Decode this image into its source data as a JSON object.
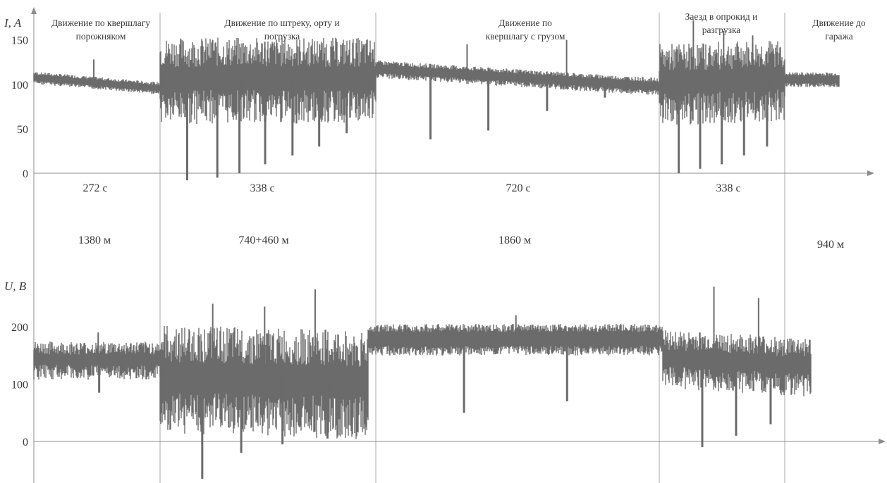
{
  "colors": {
    "trace": "#6b6b6b",
    "axis": "#8c8c8c",
    "divider": "#a8a8a8",
    "text": "#3a3a3a"
  },
  "chart_data": [
    {
      "type": "line",
      "title": "",
      "ylabel": "I, A",
      "xlabel": "",
      "ylim": [
        0,
        160
      ],
      "yticks": [
        "0",
        "50",
        "100",
        "150"
      ],
      "yticks_values": [
        0,
        50,
        100,
        150
      ],
      "grid": false,
      "phases": [
        {
          "title_lines": [
            "Движение по кверш­лагу",
            "порожняком"
          ],
          "duration": "272 с",
          "distance": "1380 м"
        },
        {
          "title_lines": [
            "Движение по штреку, орту и",
            "погрузка"
          ],
          "duration": "338 с",
          "distance": "740+460 м"
        },
        {
          "title_lines": [
            "Движение по",
            "квершлагу с грузом"
          ],
          "duration": "720 с",
          "distance": "1860 м"
        },
        {
          "title_lines": [
            "Заезд в опрокид и",
            "разгрузка"
          ],
          "duration": "338 с",
          "distance": ""
        },
        {
          "title_lines": [
            "Движение до",
            "гаража"
          ],
          "duration": "",
          "distance": "940 м"
        }
      ],
      "series": [
        {
          "segments": [
            {
              "phase": 0,
              "band": [
                98,
                112
              ],
              "trend": [
                108,
                96
              ],
              "spikes_down": [],
              "spikes_up": [
                128
              ]
            },
            {
              "phase": 1,
              "band": [
                55,
                150
              ],
              "trend": [
                110,
                110
              ],
              "spikes_down": [
                -8,
                -5,
                0,
                10,
                20,
                30,
                45
              ],
              "spikes_up": [
                150,
                148,
                145
              ]
            },
            {
              "phase": 2,
              "band": [
                98,
                118
              ],
              "trend": [
                118,
                98
              ],
              "spikes_down": [
                38,
                48,
                70,
                85
              ],
              "spikes_up": [
                145,
                150
              ]
            },
            {
              "phase": 3,
              "band": [
                60,
                150
              ],
              "trend": [
                105,
                110
              ],
              "spikes_down": [
                0,
                5,
                10,
                20,
                30
              ],
              "spikes_up": [
                172,
                160,
                155
              ]
            },
            {
              "phase": 4,
              "band": [
                98,
                115
              ],
              "trend": [
                106,
                106
              ],
              "spikes_down": [],
              "spikes_up": []
            }
          ]
        }
      ]
    },
    {
      "type": "line",
      "title": "",
      "ylabel": "U, B",
      "xlabel": "",
      "ylim": [
        -70,
        260
      ],
      "yticks": [
        "0",
        "100",
        "200"
      ],
      "yticks_values": [
        0,
        100,
        200
      ],
      "grid": false,
      "series": [
        {
          "segments": [
            {
              "phase": 0,
              "band": [
                115,
                180
              ],
              "trend": [
                145,
                145
              ],
              "spikes_down": [
                85
              ],
              "spikes_up": [
                190
              ]
            },
            {
              "phase": 1,
              "band": [
                15,
                200
              ],
              "trend": [
                120,
                110
              ],
              "spikes_down": [
                -65,
                -20,
                -5,
                5
              ],
              "spikes_up": [
                240,
                235,
                265
              ]
            },
            {
              "phase": 2,
              "band": [
                150,
                205
              ],
              "trend": [
                180,
                180
              ],
              "spikes_down": [
                50,
                70
              ],
              "spikes_up": [
                220
              ]
            },
            {
              "phase": 3,
              "band": [
                100,
                200
              ],
              "trend": [
                150,
                135
              ],
              "spikes_down": [
                -10,
                10,
                30
              ],
              "spikes_up": [
                270,
                250
              ]
            },
            {
              "phase": 4,
              "band": [
                105,
                160
              ],
              "trend": [
                135,
                135
              ],
              "spikes_down": [],
              "spikes_up": []
            }
          ]
        }
      ]
    }
  ]
}
